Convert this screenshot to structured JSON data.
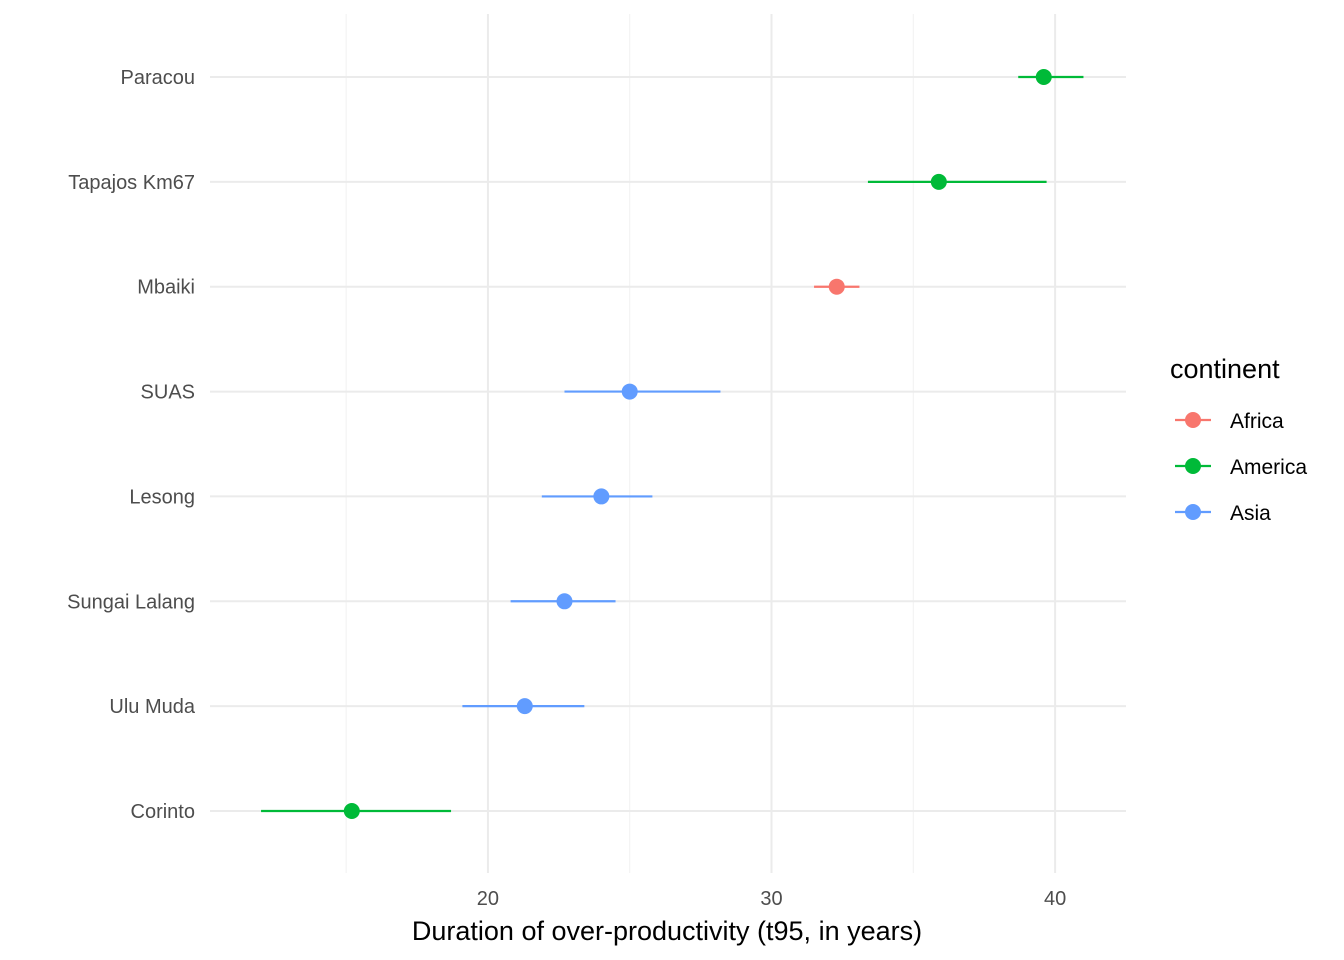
{
  "chart_data": {
    "type": "scatter",
    "subtype": "point-range (dot with horizontal error bars)",
    "title": "",
    "xlabel": "Duration of over-productivity (t95, in years)",
    "ylabel": "",
    "xlim": [
      10.2,
      42.5
    ],
    "x_ticks": [
      20,
      30,
      40
    ],
    "x_tick_labels": [
      "20",
      "30",
      "40"
    ],
    "x_minor_gridlines": [
      15,
      25,
      35
    ],
    "grid": true,
    "legend": {
      "title": "continent",
      "position": "right",
      "entries": [
        {
          "label": "Africa",
          "color": "#F8766D"
        },
        {
          "label": "America",
          "color": "#00BA38"
        },
        {
          "label": "Asia",
          "color": "#619CFF"
        }
      ]
    },
    "categories": [
      "Corinto",
      "Ulu Muda",
      "Sungai Lalang",
      "Lesong",
      "SUAS",
      "Mbaiki",
      "Tapajos Km67",
      "Paracou"
    ],
    "points": [
      {
        "site": "Corinto",
        "continent": "America",
        "x": 15.2,
        "xmin": 12.0,
        "xmax": 18.7
      },
      {
        "site": "Ulu Muda",
        "continent": "Asia",
        "x": 21.3,
        "xmin": 19.1,
        "xmax": 23.4
      },
      {
        "site": "Sungai Lalang",
        "continent": "Asia",
        "x": 22.7,
        "xmin": 20.8,
        "xmax": 24.5
      },
      {
        "site": "Lesong",
        "continent": "Asia",
        "x": 24.0,
        "xmin": 21.9,
        "xmax": 25.8
      },
      {
        "site": "SUAS",
        "continent": "Asia",
        "x": 25.0,
        "xmin": 22.7,
        "xmax": 28.2
      },
      {
        "site": "Mbaiki",
        "continent": "Africa",
        "x": 32.3,
        "xmin": 31.5,
        "xmax": 33.1
      },
      {
        "site": "Tapajos Km67",
        "continent": "America",
        "x": 35.9,
        "xmin": 33.4,
        "xmax": 39.7
      },
      {
        "site": "Paracou",
        "continent": "America",
        "x": 39.6,
        "xmin": 38.7,
        "xmax": 41.0
      }
    ]
  },
  "colors": {
    "Africa": "#F8766D",
    "America": "#00BA38",
    "Asia": "#619CFF",
    "grid_major": "#EBEBEB",
    "grid_minor": "#F2F2F2",
    "tick_text": "#4D4D4D"
  }
}
